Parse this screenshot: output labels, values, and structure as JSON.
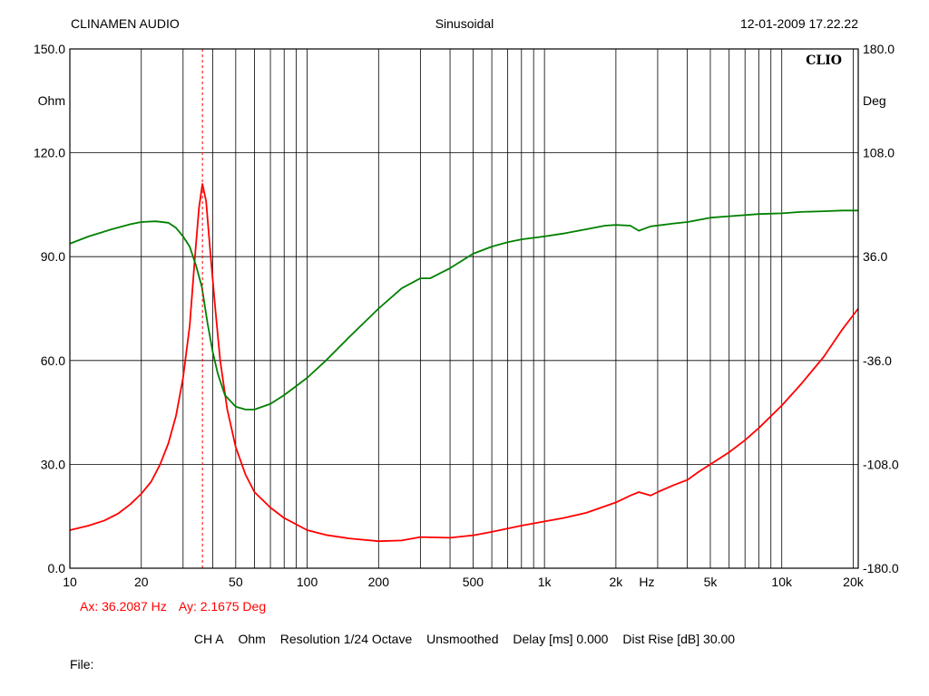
{
  "header": {
    "left": "CLINAMEN AUDIO",
    "center": "Sinusoidal",
    "right": "12-01-2009 17.22.22"
  },
  "chart_data": {
    "type": "line",
    "brand": "CLIO",
    "x_axis": {
      "scale": "log",
      "range": [
        10,
        21000
      ],
      "tick_labels": [
        {
          "value": 10,
          "label": "10"
        },
        {
          "value": 20,
          "label": "20"
        },
        {
          "value": 50,
          "label": "50"
        },
        {
          "value": 100,
          "label": "100"
        },
        {
          "value": 200,
          "label": "200"
        },
        {
          "value": 500,
          "label": "500"
        },
        {
          "value": 1000,
          "label": "1k"
        },
        {
          "value": 2000,
          "label": "2k"
        },
        {
          "value": 5000,
          "label": "5k"
        },
        {
          "value": 10000,
          "label": "10k"
        },
        {
          "value": 20000,
          "label": "20k"
        }
      ],
      "unit_label": "Hz"
    },
    "y_left": {
      "label": "Ohm",
      "range": [
        0,
        150
      ],
      "ticks": [
        "0.0",
        "30.0",
        "60.0",
        "90.0",
        "120.0",
        "150.0"
      ]
    },
    "y_right": {
      "label": "Deg",
      "range": [
        -180,
        180
      ],
      "ticks": [
        "-180.0",
        "-108.0",
        "-36.0",
        "36.0",
        "108.0",
        "180.0"
      ]
    },
    "grid": true,
    "series": [
      {
        "color": "#ff0000",
        "axis": "left",
        "points": [
          [
            10,
            11.0
          ],
          [
            12,
            12.3
          ],
          [
            14,
            13.8
          ],
          [
            16,
            15.8
          ],
          [
            18,
            18.5
          ],
          [
            20,
            21.5
          ],
          [
            22,
            25.0
          ],
          [
            24,
            30.0
          ],
          [
            26,
            36.0
          ],
          [
            28,
            44.0
          ],
          [
            30,
            55.0
          ],
          [
            32,
            70.0
          ],
          [
            33.5,
            88.0
          ],
          [
            35,
            104.0
          ],
          [
            36.2,
            111.0
          ],
          [
            37.5,
            106.0
          ],
          [
            39,
            92.0
          ],
          [
            41,
            75.0
          ],
          [
            43,
            60.0
          ],
          [
            46,
            46.0
          ],
          [
            50,
            35.0
          ],
          [
            55,
            27.0
          ],
          [
            60,
            22.0
          ],
          [
            70,
            17.5
          ],
          [
            80,
            14.5
          ],
          [
            100,
            11.0
          ],
          [
            120,
            9.6
          ],
          [
            150,
            8.6
          ],
          [
            200,
            7.8
          ],
          [
            250,
            8.0
          ],
          [
            300,
            9.0
          ],
          [
            400,
            8.8
          ],
          [
            500,
            9.5
          ],
          [
            600,
            10.5
          ],
          [
            800,
            12.3
          ],
          [
            1000,
            13.5
          ],
          [
            1200,
            14.5
          ],
          [
            1500,
            16.0
          ],
          [
            2000,
            19.0
          ],
          [
            2300,
            21.0
          ],
          [
            2500,
            22.0
          ],
          [
            2800,
            21.0
          ],
          [
            3000,
            22.0
          ],
          [
            3500,
            24.0
          ],
          [
            4000,
            25.5
          ],
          [
            4500,
            28.0
          ],
          [
            5000,
            30.0
          ],
          [
            6000,
            33.5
          ],
          [
            7000,
            37.0
          ],
          [
            8000,
            40.5
          ],
          [
            10000,
            47.0
          ],
          [
            12000,
            53.0
          ],
          [
            15000,
            61.0
          ],
          [
            18000,
            69.0
          ],
          [
            21000,
            75.0
          ]
        ]
      },
      {
        "color": "#008000",
        "axis": "right",
        "points": [
          [
            10,
            45.0
          ],
          [
            12,
            50.0
          ],
          [
            15,
            55.0
          ],
          [
            18,
            58.5
          ],
          [
            20,
            60.0
          ],
          [
            23,
            60.5
          ],
          [
            26,
            59.5
          ],
          [
            28,
            56.0
          ],
          [
            30,
            50.0
          ],
          [
            32,
            43.0
          ],
          [
            34,
            30.0
          ],
          [
            36,
            15.0
          ],
          [
            38,
            -10.0
          ],
          [
            40,
            -30.0
          ],
          [
            42,
            -45.0
          ],
          [
            45,
            -60.0
          ],
          [
            50,
            -68.0
          ],
          [
            55,
            -70.0
          ],
          [
            60,
            -70.0
          ],
          [
            70,
            -66.0
          ],
          [
            80,
            -60.0
          ],
          [
            100,
            -48.0
          ],
          [
            120,
            -36.0
          ],
          [
            150,
            -20.0
          ],
          [
            200,
            0.0
          ],
          [
            250,
            14.0
          ],
          [
            300,
            21.0
          ],
          [
            330,
            21.0
          ],
          [
            400,
            28.0
          ],
          [
            500,
            38.0
          ],
          [
            600,
            43.0
          ],
          [
            700,
            46.0
          ],
          [
            800,
            48.0
          ],
          [
            1000,
            50.0
          ],
          [
            1200,
            52.0
          ],
          [
            1500,
            55.0
          ],
          [
            1800,
            57.5
          ],
          [
            2000,
            58.0
          ],
          [
            2300,
            57.5
          ],
          [
            2500,
            54.0
          ],
          [
            2800,
            57.0
          ],
          [
            3500,
            59.0
          ],
          [
            4000,
            60.0
          ],
          [
            5000,
            63.0
          ],
          [
            6000,
            64.0
          ],
          [
            8000,
            65.5
          ],
          [
            10000,
            66.0
          ],
          [
            12000,
            67.0
          ],
          [
            15000,
            67.5
          ],
          [
            18000,
            68.0
          ],
          [
            21000,
            68.0
          ]
        ]
      }
    ],
    "cursor": {
      "x": 36.2087,
      "color": "#ff0000",
      "readout_x": "Ax: 36.2087 Hz",
      "readout_y": "Ay: 2.1675 Deg"
    }
  },
  "footer": {
    "channel": "CH A",
    "unit": "Ohm",
    "resolution": "Resolution 1/24 Octave",
    "smoothing": "Unsmoothed",
    "delay": "Delay [ms] 0.000",
    "dist_rise": "Dist Rise [dB] 30.00",
    "file_label": "File:"
  }
}
